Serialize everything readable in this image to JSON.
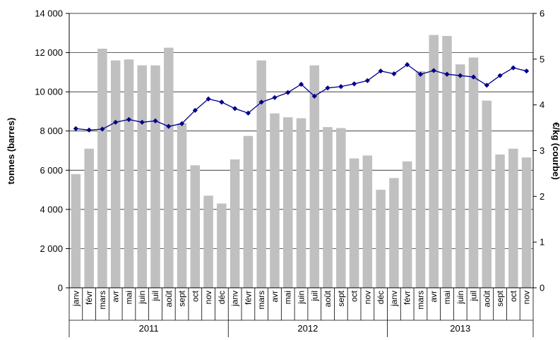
{
  "chart_data": {
    "type": "bar",
    "title": "",
    "ylabel": "tonnes (barres)",
    "y2label": "€/kg (courbe)",
    "ylim": [
      0,
      14000
    ],
    "y2lim": [
      0,
      6
    ],
    "yticks": [
      "0",
      "2 000",
      "4 000",
      "6 000",
      "8 000",
      "10 000",
      "12 000",
      "14 000"
    ],
    "y2ticks": [
      "0",
      "1",
      "2",
      "3",
      "4",
      "5",
      "6"
    ],
    "categories": [
      "janv",
      "févr",
      "mars",
      "avr",
      "mai",
      "juin",
      "juil",
      "août",
      "sept",
      "oct",
      "nov",
      "déc",
      "janv",
      "févr",
      "mars",
      "avr",
      "mai",
      "juin",
      "juil",
      "août",
      "sept",
      "oct",
      "nov",
      "déc",
      "janv",
      "févr",
      "mars",
      "avr",
      "mai",
      "juin",
      "juil",
      "août",
      "sept",
      "oct",
      "nov"
    ],
    "groups": [
      {
        "label": "2011",
        "count": 12
      },
      {
        "label": "2012",
        "count": 12
      },
      {
        "label": "2013",
        "count": 11
      }
    ],
    "series": [
      {
        "name": "tonnes (barres)",
        "kind": "bar",
        "axis": "left",
        "color": "#c0c0c0",
        "values": [
          5800,
          7100,
          12200,
          11600,
          11650,
          11350,
          11350,
          12250,
          8400,
          6250,
          4700,
          4300,
          6550,
          7750,
          11600,
          8900,
          8700,
          8650,
          11350,
          8200,
          8150,
          6600,
          6750,
          5000,
          5600,
          6450,
          11050,
          12900,
          12850,
          11400,
          11750,
          9550,
          6800,
          7100,
          6650
        ]
      },
      {
        "name": "€/kg (courbe)",
        "kind": "line",
        "axis": "right",
        "color": "#00008b",
        "values": [
          3.48,
          3.45,
          3.47,
          3.62,
          3.68,
          3.62,
          3.65,
          3.53,
          3.59,
          3.88,
          4.13,
          4.06,
          3.92,
          3.82,
          4.06,
          4.16,
          4.27,
          4.45,
          4.19,
          4.37,
          4.4,
          4.46,
          4.53,
          4.74,
          4.68,
          4.88,
          4.67,
          4.75,
          4.67,
          4.64,
          4.61,
          4.43,
          4.64,
          4.81,
          4.74
        ]
      }
    ],
    "grid": true,
    "legend": "none"
  }
}
